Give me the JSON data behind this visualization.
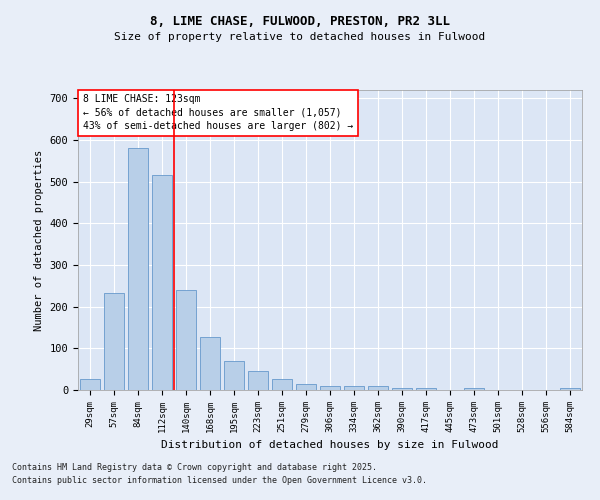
{
  "title1": "8, LIME CHASE, FULWOOD, PRESTON, PR2 3LL",
  "title2": "Size of property relative to detached houses in Fulwood",
  "xlabel": "Distribution of detached houses by size in Fulwood",
  "ylabel": "Number of detached properties",
  "categories": [
    "29sqm",
    "57sqm",
    "84sqm",
    "112sqm",
    "140sqm",
    "168sqm",
    "195sqm",
    "223sqm",
    "251sqm",
    "279sqm",
    "306sqm",
    "334sqm",
    "362sqm",
    "390sqm",
    "417sqm",
    "445sqm",
    "473sqm",
    "501sqm",
    "528sqm",
    "556sqm",
    "584sqm"
  ],
  "values": [
    26,
    234,
    580,
    515,
    240,
    127,
    70,
    45,
    27,
    14,
    10,
    10,
    10,
    5,
    5,
    0,
    5,
    0,
    0,
    0,
    5
  ],
  "bar_color": "#b8cfe8",
  "bar_edge_color": "#6699cc",
  "background_color": "#dce6f5",
  "grid_color": "#ffffff",
  "fig_background": "#e8eef8",
  "property_line_x": 3.5,
  "property_label": "8 LIME CHASE: 123sqm",
  "annotation_line1": "← 56% of detached houses are smaller (1,057)",
  "annotation_line2": "43% of semi-detached houses are larger (802) →",
  "footnote1": "Contains HM Land Registry data © Crown copyright and database right 2025.",
  "footnote2": "Contains public sector information licensed under the Open Government Licence v3.0.",
  "ylim": [
    0,
    720
  ],
  "yticks": [
    0,
    100,
    200,
    300,
    400,
    500,
    600,
    700
  ]
}
